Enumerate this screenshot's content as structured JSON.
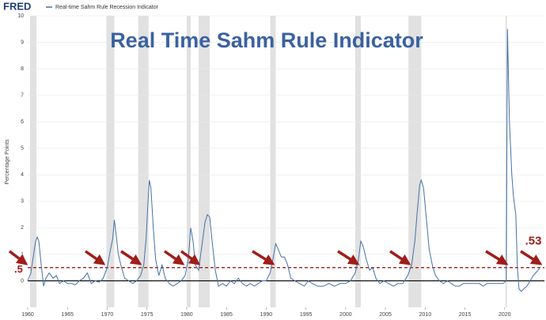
{
  "chart_data": {
    "type": "line",
    "logo": "FRED",
    "title": "Real Time Sahm Rule Indicator",
    "y_label": "Percentage Points",
    "xlim": [
      1960,
      2025
    ],
    "xticks": [
      1960,
      1965,
      1970,
      1975,
      1980,
      1985,
      1990,
      1995,
      2000,
      2005,
      2010,
      2015,
      2020
    ],
    "ylim": [
      -1,
      10
    ],
    "yticks": [
      0,
      1,
      2,
      3,
      4,
      5,
      6,
      7,
      8,
      9,
      10
    ],
    "grid": true,
    "recession_color": "#e1e1e1",
    "recessions": [
      [
        1960.3,
        1961.1
      ],
      [
        1969.9,
        1970.9
      ],
      [
        1973.9,
        1975.2
      ],
      [
        1980.0,
        1980.5
      ],
      [
        1981.5,
        1982.9
      ],
      [
        1990.5,
        1991.2
      ],
      [
        2001.2,
        2001.9
      ],
      [
        2007.9,
        2009.5
      ],
      [
        2020.1,
        2020.3
      ]
    ],
    "reference_line": {
      "value": 0.5,
      "label": ".5",
      "color": "#a01d18"
    },
    "latest_label": {
      "value": 0.53,
      "label": ".53"
    },
    "series": [
      {
        "name": "Real-time Sahm Rule Recession Indicator",
        "color": "#4572a7",
        "x": [
          1960.0,
          1960.4,
          1960.7,
          1961.0,
          1961.2,
          1961.4,
          1961.7,
          1962.0,
          1962.3,
          1962.7,
          1963.2,
          1963.6,
          1964.0,
          1964.5,
          1965.0,
          1965.5,
          1966.0,
          1966.5,
          1967.0,
          1967.5,
          1968.0,
          1968.5,
          1969.0,
          1969.5,
          1970.0,
          1970.3,
          1970.7,
          1970.9,
          1971.1,
          1971.4,
          1971.8,
          1972.2,
          1972.7,
          1973.2,
          1973.7,
          1974.2,
          1974.6,
          1974.9,
          1975.1,
          1975.3,
          1975.5,
          1975.8,
          1976.1,
          1976.5,
          1976.9,
          1977.3,
          1977.8,
          1978.3,
          1978.8,
          1979.3,
          1979.8,
          1980.2,
          1980.5,
          1980.8,
          1981.1,
          1981.5,
          1981.9,
          1982.3,
          1982.6,
          1982.9,
          1983.2,
          1983.6,
          1984.0,
          1984.5,
          1985.0,
          1985.5,
          1986.0,
          1986.5,
          1987.0,
          1987.5,
          1988.0,
          1988.5,
          1989.0,
          1989.5,
          1990.0,
          1990.5,
          1990.9,
          1991.2,
          1991.5,
          1991.9,
          1992.3,
          1992.7,
          1993.1,
          1993.6,
          1994.2,
          1994.8,
          1995.3,
          1995.8,
          1996.5,
          1997.2,
          1997.9,
          1998.6,
          1999.3,
          2000.0,
          2000.6,
          2001.2,
          2001.6,
          2001.9,
          2002.2,
          2002.6,
          2003.0,
          2003.4,
          2003.8,
          2004.3,
          2004.8,
          2005.4,
          2006.0,
          2006.6,
          2007.2,
          2007.8,
          2008.3,
          2008.7,
          2009.0,
          2009.3,
          2009.5,
          2009.8,
          2010.1,
          2010.5,
          2010.9,
          2011.3,
          2011.8,
          2012.3,
          2012.8,
          2013.3,
          2013.8,
          2014.3,
          2014.8,
          2015.3,
          2015.8,
          2016.3,
          2016.8,
          2017.3,
          2017.8,
          2018.3,
          2018.8,
          2019.3,
          2019.8,
          2020.2,
          2020.35,
          2020.6,
          2020.9,
          2021.1,
          2021.4,
          2021.6,
          2021.8,
          2022.1,
          2022.4,
          2022.8,
          2023.2,
          2023.6,
          2023.9,
          2024.2,
          2024.5
        ],
        "values": [
          0.0,
          0.3,
          0.9,
          1.5,
          1.65,
          1.5,
          0.6,
          -0.2,
          0.1,
          0.3,
          0.1,
          0.2,
          -0.1,
          0.0,
          -0.1,
          -0.1,
          -0.15,
          0.0,
          0.1,
          0.3,
          -0.1,
          0.0,
          -0.05,
          0.1,
          0.5,
          1.0,
          1.6,
          2.3,
          1.8,
          1.0,
          0.5,
          0.1,
          0.0,
          -0.1,
          0.0,
          0.2,
          0.6,
          1.6,
          2.8,
          3.8,
          3.5,
          2.0,
          0.8,
          0.2,
          0.6,
          0.1,
          -0.1,
          -0.2,
          -0.1,
          0.0,
          0.2,
          0.8,
          2.0,
          1.5,
          0.6,
          0.4,
          1.3,
          2.2,
          2.5,
          2.4,
          1.5,
          0.4,
          -0.2,
          -0.1,
          -0.2,
          0.0,
          -0.1,
          0.1,
          -0.1,
          -0.2,
          -0.1,
          -0.2,
          -0.1,
          0.0,
          0.0,
          0.3,
          0.9,
          1.4,
          1.2,
          0.9,
          0.9,
          0.6,
          0.1,
          0.0,
          -0.1,
          -0.2,
          0.0,
          -0.1,
          -0.2,
          -0.2,
          -0.1,
          -0.2,
          -0.1,
          -0.1,
          0.0,
          0.3,
          0.8,
          1.5,
          1.3,
          0.8,
          0.4,
          0.5,
          0.1,
          -0.1,
          0.0,
          -0.1,
          -0.2,
          -0.1,
          -0.1,
          0.2,
          0.6,
          1.5,
          2.6,
          3.6,
          3.8,
          3.5,
          2.5,
          1.2,
          0.6,
          0.2,
          0.0,
          -0.1,
          0.0,
          -0.1,
          -0.2,
          -0.2,
          -0.1,
          -0.1,
          -0.1,
          -0.1,
          -0.1,
          -0.2,
          -0.1,
          -0.1,
          -0.1,
          -0.1,
          -0.1,
          0.0,
          9.5,
          6.0,
          4.0,
          3.2,
          2.5,
          0.5,
          -0.3,
          -0.4,
          -0.3,
          -0.2,
          0.0,
          0.2,
          0.3,
          0.4,
          0.53
        ]
      }
    ]
  }
}
